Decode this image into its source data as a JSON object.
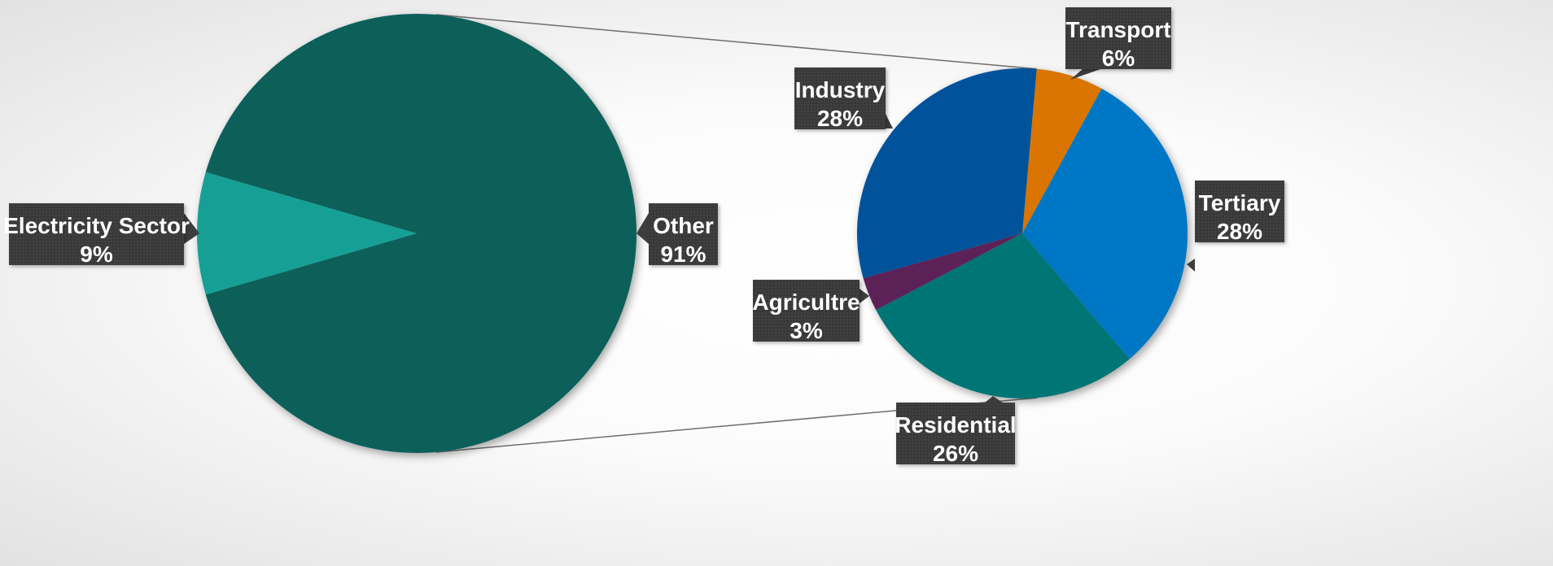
{
  "chart_data": {
    "type": "pie",
    "subtype": "pie-of-pie",
    "title": "",
    "legend": "none",
    "main_pie": {
      "slices": [
        {
          "label": "Electricity Sector",
          "value": 9,
          "display": "9%",
          "color": "#17a095"
        },
        {
          "label": "Other",
          "value": 91,
          "display": "91%",
          "color": "#0f5f5a"
        }
      ]
    },
    "secondary_pie": {
      "expands": "Other",
      "slices": [
        {
          "label": "Transport",
          "value": 6,
          "display": "6%",
          "color": "#d97500"
        },
        {
          "label": "Tertiary",
          "value": 28,
          "display": "28%",
          "color": "#0077c4"
        },
        {
          "label": "Residential",
          "value": 26,
          "display": "26%",
          "color": "#007475"
        },
        {
          "label": "Agricultre",
          "value": 3,
          "display": "3%",
          "color": "#5c2258"
        },
        {
          "label": "Industry",
          "value": 28,
          "display": "28%",
          "color": "#00529b"
        }
      ]
    },
    "label_style": {
      "background": "#3d3d3d",
      "text_color": "#ffffff"
    }
  }
}
